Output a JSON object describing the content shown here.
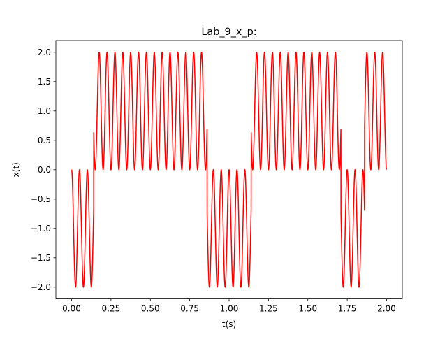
{
  "chart_data": {
    "type": "line",
    "title": "Lab_9_x_p:",
    "xlabel": "t(s)",
    "ylabel": "x(t)",
    "xlim": [
      -0.1,
      2.1
    ],
    "ylim": [
      -2.2,
      2.2
    ],
    "xticks": [
      0.0,
      0.25,
      0.5,
      0.75,
      1.0,
      1.25,
      1.5,
      1.75,
      2.0
    ],
    "xtick_labels": [
      "0.00",
      "0.25",
      "0.50",
      "0.75",
      "1.00",
      "1.25",
      "1.50",
      "1.75",
      "2.00"
    ],
    "yticks": [
      2.0,
      1.5,
      1.0,
      0.5,
      0.0,
      -0.5,
      -1.0,
      -1.5,
      -2.0
    ],
    "ytick_labels": [
      "2.0",
      "1.5",
      "1.0",
      "0.5",
      "0.0",
      "−0.5",
      "−1.0",
      "−1.5",
      "−2.0"
    ],
    "grid": false,
    "series": [
      {
        "color": "#ff0000",
        "t_start": 0.0,
        "t_end": 2.0,
        "carrier_frequency_hz": 20,
        "envelope": "1 - cos(2*pi*20*t)",
        "segments": [
          {
            "t_start": 0.0,
            "t_end": 0.14,
            "amplitude": -1
          },
          {
            "t_start": 0.14,
            "t_end": 0.86,
            "amplitude": 1
          },
          {
            "t_start": 0.86,
            "t_end": 1.14,
            "amplitude": -1
          },
          {
            "t_start": 1.14,
            "t_end": 1.71,
            "amplitude": 1
          },
          {
            "t_start": 1.71,
            "t_end": 1.86,
            "amplitude": -1
          },
          {
            "t_start": 1.86,
            "t_end": 2.0,
            "amplitude": 1
          }
        ]
      }
    ]
  }
}
